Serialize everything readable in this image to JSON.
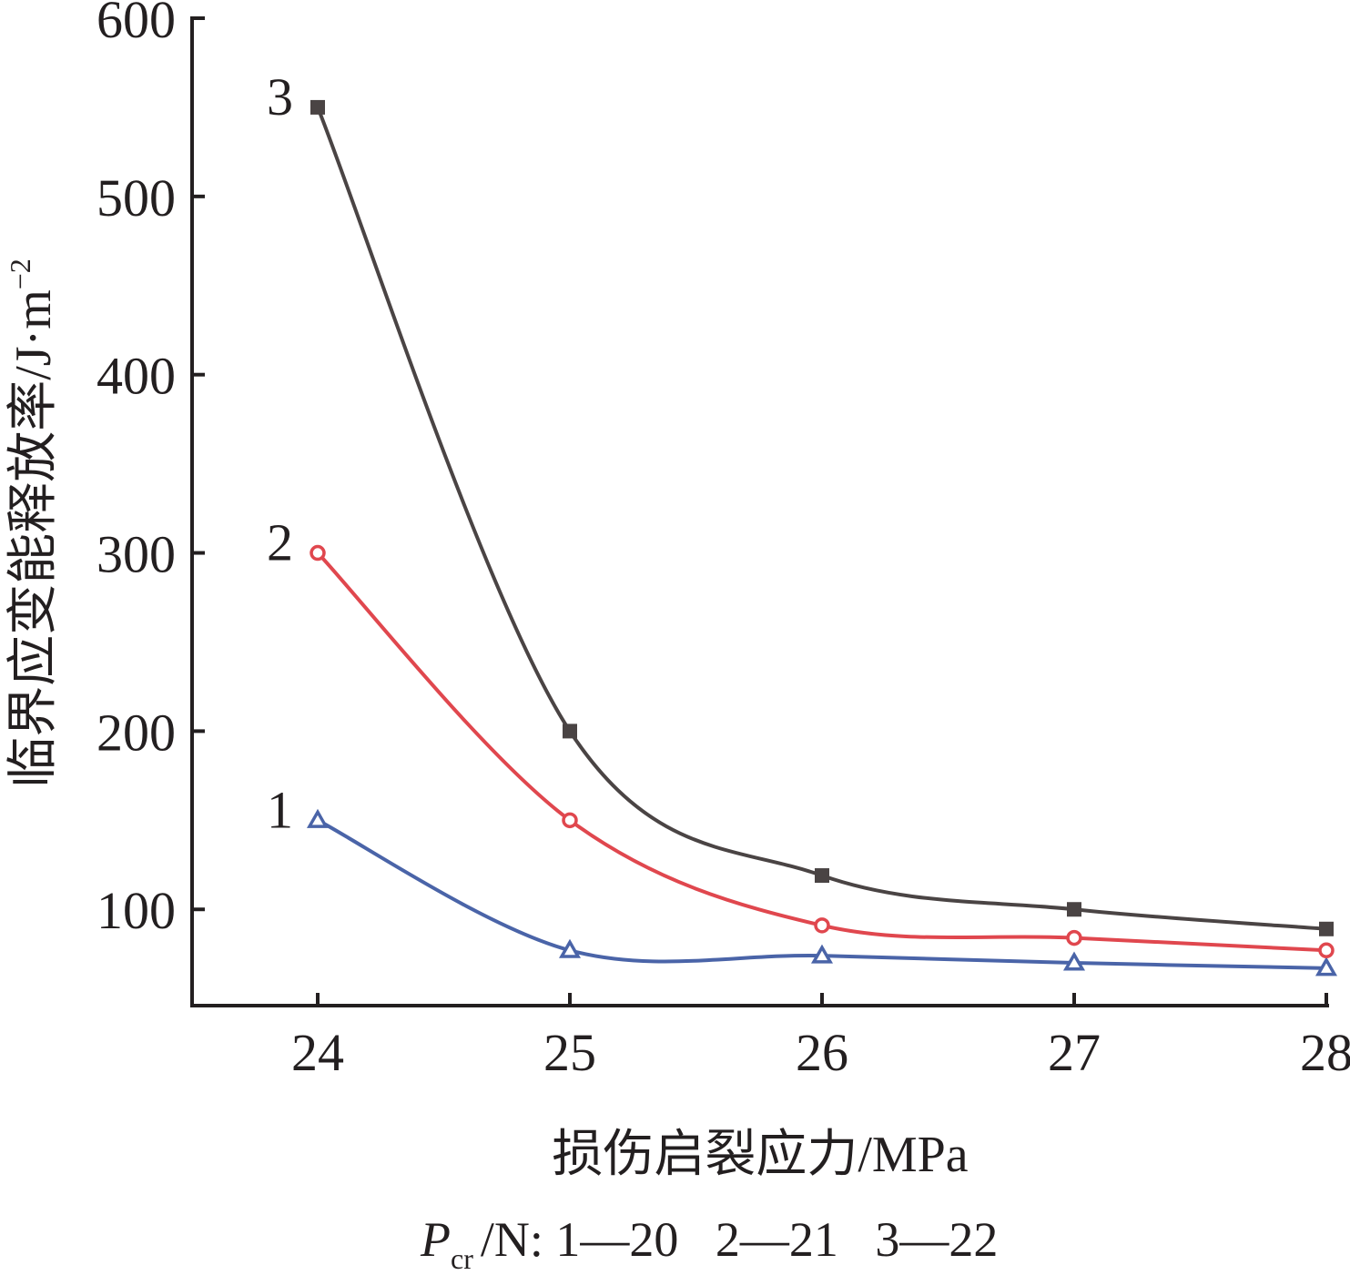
{
  "chart_data": {
    "type": "line",
    "title": "",
    "xlabel": "损伤启裂应力/MPa",
    "ylabel": "临界应变能释放率/J·m",
    "ylabel_exponent": "−2",
    "x": [
      24,
      25,
      26,
      27,
      28
    ],
    "xticks": [
      "24",
      "25",
      "26",
      "27",
      "28"
    ],
    "yticks": [
      "100",
      "200",
      "300",
      "400",
      "500",
      "600"
    ],
    "xlim": [
      23.5,
      28
    ],
    "ylim": [
      46,
      600
    ],
    "grid": false,
    "series": [
      {
        "name": "1",
        "marker": "triangle",
        "color": "#4a64a8",
        "values": [
          150,
          77,
          74,
          70,
          67
        ]
      },
      {
        "name": "2",
        "marker": "circle",
        "color": "#e0474e",
        "values": [
          300,
          150,
          91,
          84,
          77
        ]
      },
      {
        "name": "3",
        "marker": "square",
        "color": "#4a4444",
        "values": [
          550,
          200,
          119,
          100,
          89
        ]
      }
    ],
    "legend": {
      "symbol": "P",
      "subscript": "cr",
      "text": "/N: 1—20   2—21   3—22"
    }
  }
}
